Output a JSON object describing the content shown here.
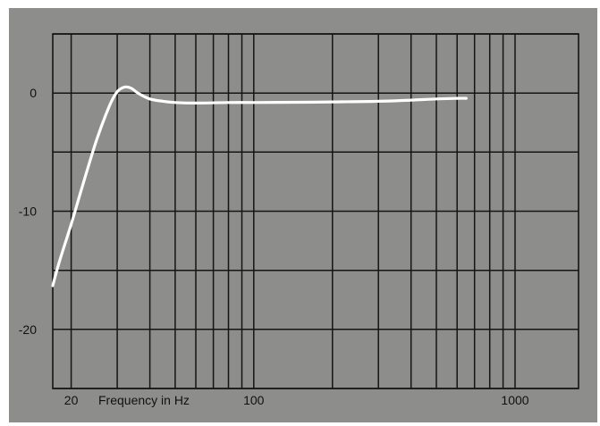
{
  "chart_data": {
    "type": "line",
    "title": "",
    "xlabel": "Frequency in Hz",
    "ylabel": "",
    "x_scale": "log",
    "xlim": [
      17,
      1750
    ],
    "ylim": [
      -25,
      5
    ],
    "grid": true,
    "x_ticks": [
      20,
      100,
      1000
    ],
    "x_tick_labels": [
      "20",
      "100",
      "1000"
    ],
    "y_ticks": [
      0,
      -10,
      -20
    ],
    "y_tick_labels": [
      "0",
      "-10",
      "-20"
    ],
    "x_gridlines": [
      20,
      30,
      40,
      50,
      60,
      70,
      80,
      90,
      100,
      200,
      300,
      400,
      500,
      600,
      700,
      800,
      900,
      1000
    ],
    "y_gridlines": [
      5,
      0,
      -5,
      -10,
      -15,
      -20,
      -25
    ],
    "series": [
      {
        "name": "",
        "color": "#ffffff",
        "x": [
          17,
          18,
          20,
          22,
          25,
          28,
          30,
          32,
          34,
          36,
          40,
          45,
          50,
          60,
          80,
          100,
          150,
          200,
          300,
          400,
          500,
          600,
          650
        ],
        "y": [
          -16.3,
          -14.3,
          -11.1,
          -8.0,
          -4.0,
          -1.1,
          0.1,
          0.5,
          0.4,
          0.0,
          -0.5,
          -0.7,
          -0.8,
          -0.85,
          -0.8,
          -0.8,
          -0.78,
          -0.75,
          -0.7,
          -0.6,
          -0.5,
          -0.45,
          -0.45
        ]
      }
    ]
  }
}
